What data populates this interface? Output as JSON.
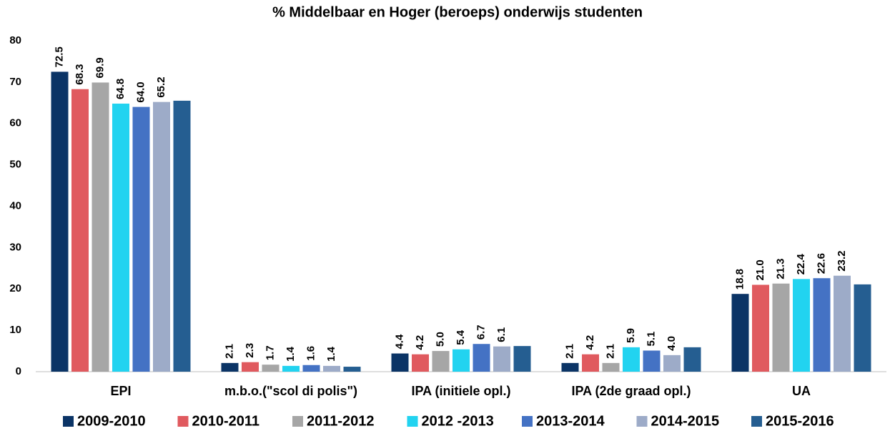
{
  "chart_data": {
    "type": "bar",
    "title": "% Middelbaar en Hoger (beroeps) onderwijs studenten",
    "categories": [
      "EPI",
      "m.b.o.(\"scol di polis\")",
      "IPA (initiele opl.)",
      "IPA (2de graad opl.)",
      "UA"
    ],
    "series": [
      {
        "name": "2009-2010",
        "color": "#0b3466",
        "values": [
          72.5,
          2.1,
          4.4,
          2.1,
          18.8
        ],
        "value_labels": [
          "72.5",
          "2.1",
          "4.4",
          "2.1",
          "18.8"
        ]
      },
      {
        "name": "2010-2011",
        "color": "#e05a5f",
        "values": [
          68.3,
          2.3,
          4.2,
          4.2,
          21
        ],
        "value_labels": [
          "68.3",
          "2.3",
          "4.2",
          "4.2",
          "21.0"
        ]
      },
      {
        "name": "2011-2012",
        "color": "#a6a6a6",
        "values": [
          69.9,
          1.7,
          5,
          2.1,
          21.3
        ],
        "value_labels": [
          "69.9",
          "1.7",
          "5.0",
          "2.1",
          "21.3"
        ]
      },
      {
        "name": "2012 -2013",
        "color": "#22d3f0",
        "values": [
          64.8,
          1.4,
          5.4,
          5.9,
          22.4
        ],
        "value_labels": [
          "64.8",
          "1.4",
          "5.4",
          "5.9",
          "22.4"
        ]
      },
      {
        "name": "2013-2014",
        "color": "#4472c4",
        "values": [
          64,
          1.6,
          6.7,
          5.1,
          22.6
        ],
        "value_labels": [
          "64.0",
          "1.6",
          "6.7",
          "5.1",
          "22.6"
        ]
      },
      {
        "name": "2014-2015",
        "color": "#9dabc8",
        "values": [
          65.2,
          1.4,
          6.1,
          4,
          23.2
        ],
        "value_labels": [
          "65.2",
          "1.4",
          "6.1",
          "4.0",
          "23.2"
        ]
      },
      {
        "name": "2015-2016",
        "color": "#255e91",
        "values": [
          65.5,
          1.2,
          6.2,
          5.9,
          21.1
        ]
      }
    ],
    "ylim": [
      0,
      80
    ],
    "yticks": [
      0,
      10,
      20,
      30,
      40,
      50,
      60,
      70,
      80
    ],
    "grid": false,
    "legend": "bottom"
  }
}
